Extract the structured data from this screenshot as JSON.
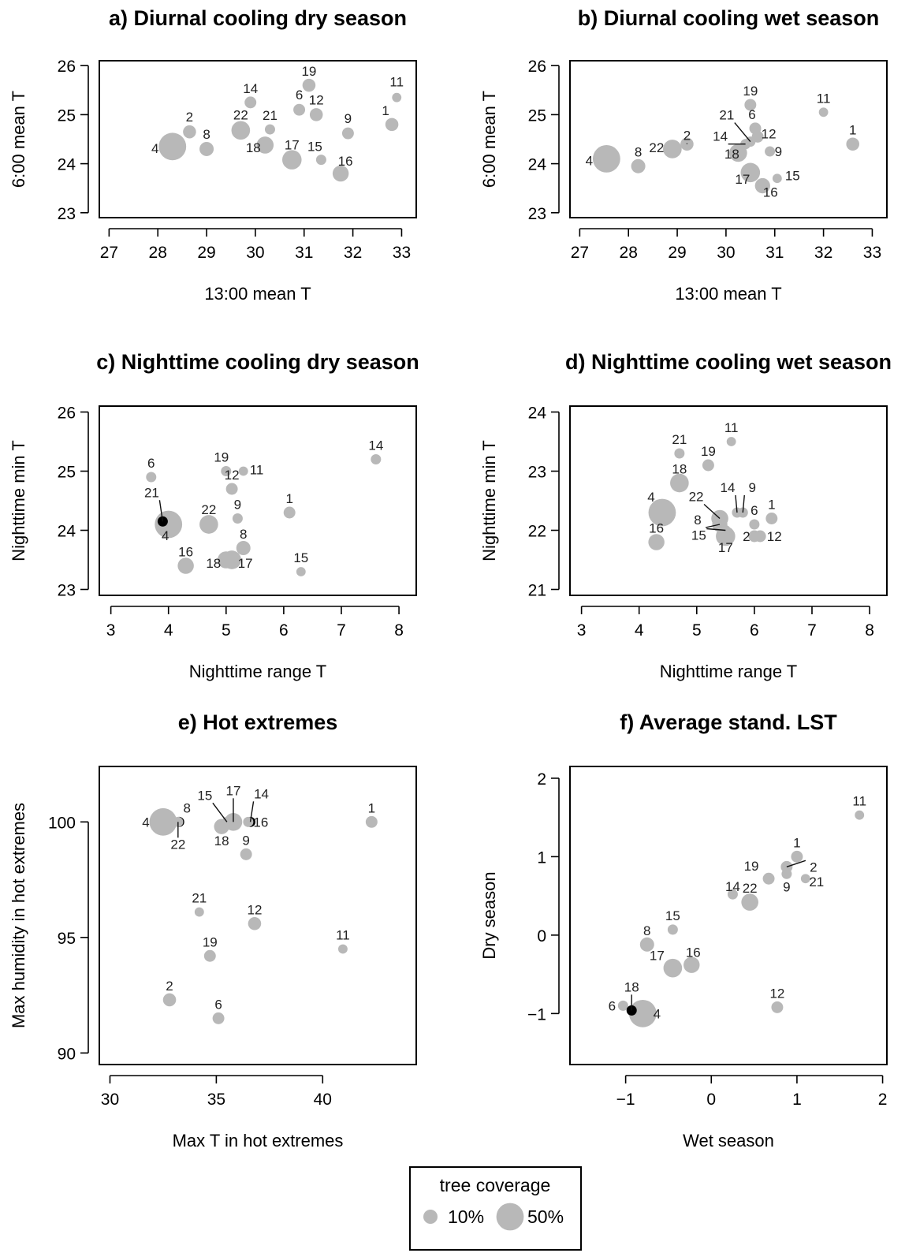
{
  "colors": {
    "point": "#b8b8b8",
    "highlight": "#000000",
    "axis": "#000000",
    "label": "#222222"
  },
  "legend": {
    "title": "tree coverage",
    "items": [
      {
        "label": "10%",
        "size": 10
      },
      {
        "label": "50%",
        "size": 50
      }
    ]
  },
  "chart_data": [
    {
      "type": "scatter",
      "title": "a) Diurnal cooling dry season",
      "xlabel": "13:00 mean T",
      "ylabel": "6:00 mean T",
      "xlim": [
        26.8,
        33.3
      ],
      "ylim": [
        22.9,
        26.1
      ],
      "xticks": [
        27,
        28,
        29,
        30,
        31,
        32,
        33
      ],
      "yticks": [
        23,
        24,
        25,
        26
      ],
      "points": [
        {
          "label": "1",
          "x": 32.8,
          "y": 24.8,
          "size": 8
        },
        {
          "label": "2",
          "x": 28.65,
          "y": 24.65,
          "size": 8
        },
        {
          "label": "4",
          "x": 28.3,
          "y": 24.35,
          "size": 50
        },
        {
          "label": "6",
          "x": 30.9,
          "y": 25.1,
          "size": 6
        },
        {
          "label": "8",
          "x": 29.0,
          "y": 24.3,
          "size": 10
        },
        {
          "label": "9",
          "x": 31.9,
          "y": 24.62,
          "size": 6
        },
        {
          "label": "11",
          "x": 32.9,
          "y": 25.35,
          "size": 3
        },
        {
          "label": "12",
          "x": 31.25,
          "y": 25.0,
          "size": 8
        },
        {
          "label": "14",
          "x": 29.9,
          "y": 25.25,
          "size": 6
        },
        {
          "label": "15",
          "x": 31.35,
          "y": 24.08,
          "size": 4
        },
        {
          "label": "16",
          "x": 31.75,
          "y": 23.8,
          "size": 14
        },
        {
          "label": "17",
          "x": 30.75,
          "y": 24.08,
          "size": 22
        },
        {
          "label": "18",
          "x": 30.2,
          "y": 24.38,
          "size": 16
        },
        {
          "label": "19",
          "x": 31.1,
          "y": 25.6,
          "size": 8
        },
        {
          "label": "21",
          "x": 30.3,
          "y": 24.7,
          "size": 4
        },
        {
          "label": "22",
          "x": 29.7,
          "y": 24.68,
          "size": 20
        }
      ]
    },
    {
      "type": "scatter",
      "title": "b) Diurnal cooling wet season",
      "xlabel": "13:00 mean T",
      "ylabel": "6:00 mean T",
      "xlim": [
        26.8,
        33.3
      ],
      "ylim": [
        22.9,
        26.1
      ],
      "xticks": [
        27,
        28,
        29,
        30,
        31,
        32,
        33
      ],
      "yticks": [
        23,
        24,
        25,
        26
      ],
      "points": [
        {
          "label": "1",
          "x": 32.6,
          "y": 24.4,
          "size": 8
        },
        {
          "label": "2",
          "x": 29.2,
          "y": 24.4,
          "size": 8
        },
        {
          "label": "4",
          "x": 27.55,
          "y": 24.1,
          "size": 50
        },
        {
          "label": "6",
          "x": 30.6,
          "y": 24.72,
          "size": 6
        },
        {
          "label": "8",
          "x": 28.2,
          "y": 23.95,
          "size": 10
        },
        {
          "label": "9",
          "x": 30.9,
          "y": 24.25,
          "size": 4
        },
        {
          "label": "11",
          "x": 32.0,
          "y": 25.05,
          "size": 3
        },
        {
          "label": "12",
          "x": 30.65,
          "y": 24.55,
          "size": 6
        },
        {
          "label": "14",
          "x": 30.4,
          "y": 24.4,
          "size": 4
        },
        {
          "label": "15",
          "x": 31.05,
          "y": 23.7,
          "size": 3
        },
        {
          "label": "16",
          "x": 30.75,
          "y": 23.55,
          "size": 12
        },
        {
          "label": "17",
          "x": 30.5,
          "y": 23.82,
          "size": 22
        },
        {
          "label": "18",
          "x": 30.25,
          "y": 24.22,
          "size": 18
        },
        {
          "label": "19",
          "x": 30.5,
          "y": 25.2,
          "size": 6
        },
        {
          "label": "21",
          "x": 30.5,
          "y": 24.45,
          "size": 4
        },
        {
          "label": "22",
          "x": 28.9,
          "y": 24.3,
          "size": 20
        }
      ]
    },
    {
      "type": "scatter",
      "title": "c) Nighttime cooling dry season",
      "xlabel": "Nighttime range T",
      "ylabel": "Nighttime min T",
      "xlim": [
        2.8,
        8.3
      ],
      "ylim": [
        22.9,
        26.1
      ],
      "xticks": [
        3,
        4,
        5,
        6,
        7,
        8
      ],
      "yticks": [
        23,
        24,
        25,
        26
      ],
      "points": [
        {
          "label": "1",
          "x": 6.1,
          "y": 24.3,
          "size": 6
        },
        {
          "label": "4",
          "x": 4.0,
          "y": 24.1,
          "size": 50
        },
        {
          "label": "6",
          "x": 3.7,
          "y": 24.9,
          "size": 4
        },
        {
          "label": "8",
          "x": 5.3,
          "y": 23.7,
          "size": 10
        },
        {
          "label": "9",
          "x": 5.2,
          "y": 24.2,
          "size": 4
        },
        {
          "label": "11",
          "x": 5.3,
          "y": 25.0,
          "size": 3
        },
        {
          "label": "12",
          "x": 5.1,
          "y": 24.7,
          "size": 6
        },
        {
          "label": "14",
          "x": 7.6,
          "y": 25.2,
          "size": 4
        },
        {
          "label": "15",
          "x": 6.3,
          "y": 23.3,
          "size": 3
        },
        {
          "label": "16",
          "x": 4.3,
          "y": 23.4,
          "size": 14
        },
        {
          "label": "17",
          "x": 5.1,
          "y": 23.5,
          "size": 20
        },
        {
          "label": "18",
          "x": 5.0,
          "y": 23.5,
          "size": 16
        },
        {
          "label": "19",
          "x": 5.0,
          "y": 25.0,
          "size": 4
        },
        {
          "label": "21",
          "x": 3.9,
          "y": 24.15,
          "size": 4,
          "highlight": true
        },
        {
          "label": "22",
          "x": 4.7,
          "y": 24.1,
          "size": 20
        }
      ]
    },
    {
      "type": "scatter",
      "title": "d) Nighttime cooling wet season",
      "xlabel": "Nighttime range T",
      "ylabel": "Nighttime min T",
      "xlim": [
        2.8,
        8.3
      ],
      "ylim": [
        20.9,
        24.1
      ],
      "xticks": [
        3,
        4,
        5,
        6,
        7,
        8
      ],
      "yticks": [
        21,
        22,
        23,
        24
      ],
      "points": [
        {
          "label": "1",
          "x": 6.3,
          "y": 22.2,
          "size": 6
        },
        {
          "label": "2",
          "x": 6.0,
          "y": 21.9,
          "size": 6
        },
        {
          "label": "4",
          "x": 4.4,
          "y": 22.3,
          "size": 50
        },
        {
          "label": "6",
          "x": 6.0,
          "y": 22.1,
          "size": 4
        },
        {
          "label": "8",
          "x": 5.4,
          "y": 22.1,
          "size": 12
        },
        {
          "label": "9",
          "x": 5.8,
          "y": 22.3,
          "size": 4
        },
        {
          "label": "11",
          "x": 5.6,
          "y": 23.5,
          "size": 3
        },
        {
          "label": "12",
          "x": 6.1,
          "y": 21.9,
          "size": 6
        },
        {
          "label": "14",
          "x": 5.7,
          "y": 22.3,
          "size": 4
        },
        {
          "label": "15",
          "x": 5.5,
          "y": 22.0,
          "size": 4
        },
        {
          "label": "16",
          "x": 4.3,
          "y": 21.8,
          "size": 14
        },
        {
          "label": "17",
          "x": 5.5,
          "y": 21.9,
          "size": 22
        },
        {
          "label": "18",
          "x": 4.7,
          "y": 22.8,
          "size": 20
        },
        {
          "label": "19",
          "x": 5.2,
          "y": 23.1,
          "size": 6
        },
        {
          "label": "21",
          "x": 4.7,
          "y": 23.3,
          "size": 4
        },
        {
          "label": "22",
          "x": 5.4,
          "y": 22.2,
          "size": 16
        }
      ]
    },
    {
      "type": "scatter",
      "title": "e) Hot extremes",
      "xlabel": "Max T in hot extremes",
      "ylabel": "Max humidity in hot extremes",
      "xlim": [
        29.5,
        44.4
      ],
      "ylim": [
        89.5,
        102.4
      ],
      "xticks": [
        30,
        35,
        40
      ],
      "yticks": [
        90,
        95,
        100
      ],
      "points": [
        {
          "label": "1",
          "x": 42.3,
          "y": 100.0,
          "size": 6
        },
        {
          "label": "2",
          "x": 32.8,
          "y": 92.3,
          "size": 8
        },
        {
          "label": "4",
          "x": 32.5,
          "y": 100.0,
          "size": 50
        },
        {
          "label": "6",
          "x": 35.1,
          "y": 91.5,
          "size": 6
        },
        {
          "label": "8",
          "x": 33.25,
          "y": 100.0,
          "size": 4,
          "highlight": true
        },
        {
          "label": "9",
          "x": 36.4,
          "y": 98.6,
          "size": 6
        },
        {
          "label": "11",
          "x": 40.95,
          "y": 94.5,
          "size": 3
        },
        {
          "label": "12",
          "x": 36.8,
          "y": 95.6,
          "size": 8
        },
        {
          "label": "14",
          "x": 36.6,
          "y": 100.0,
          "size": 4,
          "highlight": true
        },
        {
          "label": "15",
          "x": 35.5,
          "y": 100.0,
          "size": 4
        },
        {
          "label": "16",
          "x": 36.5,
          "y": 100.0,
          "size": 4
        },
        {
          "label": "17",
          "x": 35.8,
          "y": 100.0,
          "size": 18
        },
        {
          "label": "18",
          "x": 35.25,
          "y": 99.8,
          "size": 12
        },
        {
          "label": "19",
          "x": 34.7,
          "y": 94.2,
          "size": 6
        },
        {
          "label": "21",
          "x": 34.2,
          "y": 96.1,
          "size": 3
        },
        {
          "label": "22",
          "x": 33.2,
          "y": 100.0,
          "size": 4
        }
      ]
    },
    {
      "type": "scatter",
      "title": "f) Average stand. LST",
      "xlabel": "Wet season",
      "ylabel": "Dry season",
      "xlim": [
        -1.65,
        2.05
      ],
      "ylim": [
        -1.65,
        2.15
      ],
      "xticks": [
        -1,
        0,
        1,
        2
      ],
      "yticks": [
        -1,
        0,
        1,
        2
      ],
      "points": [
        {
          "label": "1",
          "x": 1.0,
          "y": 1.0,
          "size": 6
        },
        {
          "label": "2",
          "x": 0.88,
          "y": 0.87,
          "size": 6
        },
        {
          "label": "4",
          "x": -0.8,
          "y": -1.0,
          "size": 50
        },
        {
          "label": "6",
          "x": -1.03,
          "y": -0.9,
          "size": 4
        },
        {
          "label": "8",
          "x": -0.75,
          "y": -0.12,
          "size": 10
        },
        {
          "label": "9",
          "x": 0.88,
          "y": 0.78,
          "size": 4
        },
        {
          "label": "11",
          "x": 1.73,
          "y": 1.53,
          "size": 3
        },
        {
          "label": "12",
          "x": 0.77,
          "y": -0.92,
          "size": 6
        },
        {
          "label": "14",
          "x": 0.25,
          "y": 0.52,
          "size": 4
        },
        {
          "label": "15",
          "x": -0.45,
          "y": 0.07,
          "size": 4
        },
        {
          "label": "16",
          "x": -0.23,
          "y": -0.38,
          "size": 14
        },
        {
          "label": "17",
          "x": -0.45,
          "y": -0.42,
          "size": 20
        },
        {
          "label": "18",
          "x": -0.93,
          "y": -0.96,
          "size": 4,
          "highlight": true
        },
        {
          "label": "19",
          "x": 0.67,
          "y": 0.72,
          "size": 6
        },
        {
          "label": "21",
          "x": 1.1,
          "y": 0.72,
          "size": 3
        },
        {
          "label": "22",
          "x": 0.45,
          "y": 0.42,
          "size": 16
        }
      ]
    }
  ]
}
